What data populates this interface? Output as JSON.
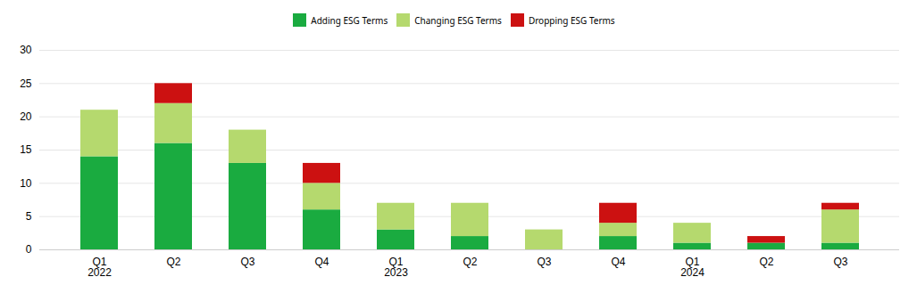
{
  "chart_data": {
    "type": "bar",
    "stacked": true,
    "categories": [
      "Q1\n2022",
      "Q2",
      "Q3",
      "Q4",
      "Q1\n2023",
      "Q2",
      "Q3",
      "Q4",
      "Q1\n2024",
      "Q2",
      "Q3"
    ],
    "series": [
      {
        "name": "Adding ESG Terms",
        "color": "#1aab40",
        "values": [
          14,
          16,
          13,
          6,
          3,
          2,
          0,
          2,
          1,
          1,
          1
        ]
      },
      {
        "name": "Changing ESG Terms",
        "color": "#b5d96e",
        "values": [
          7,
          6,
          5,
          4,
          4,
          5,
          3,
          2,
          3,
          0,
          5
        ]
      },
      {
        "name": "Dropping ESG Terms",
        "color": "#cc1111",
        "values": [
          0,
          3,
          0,
          3,
          0,
          0,
          0,
          3,
          0,
          1,
          1
        ]
      }
    ],
    "ylim": [
      0,
      30
    ],
    "yticks": [
      0,
      5,
      10,
      15,
      20,
      25,
      30
    ],
    "grid": true,
    "legend": "top"
  }
}
